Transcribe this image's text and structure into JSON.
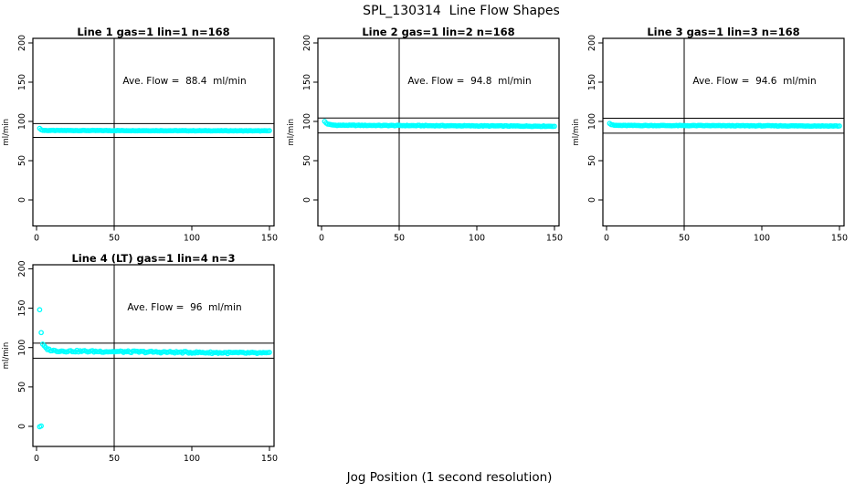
{
  "page": {
    "title": "SPL_130314  Line Flow Shapes",
    "xlabel": "Jog Position (1 second resolution)"
  },
  "chart_data": [
    {
      "type": "scatter",
      "title": "Line 1 gas=1 lin=1 n=168",
      "gas": 1,
      "lin": 1,
      "n": 168,
      "annotation": "Ave. Flow =  88.4  ml/min",
      "ave_flow": 88.4,
      "units": "ml/min",
      "ylabel": "ml/min",
      "xlim": [
        0,
        150
      ],
      "ylim": [
        0,
        200
      ],
      "x_ticks": [
        0,
        50,
        100,
        150
      ],
      "y_ticks": [
        0,
        50,
        100,
        150,
        200
      ],
      "ref_line_v": 50,
      "ref_lines_h": [
        97.2,
        79.6
      ],
      "point_color": "#00FFFF",
      "series": {
        "x_start": 2,
        "x_end": 150,
        "x_step": 1,
        "start_y": 91.4,
        "settle_y": 88.5,
        "end_y": 88.0,
        "decay_len": 0.8,
        "noise": 0.25
      },
      "outliers": []
    },
    {
      "type": "scatter",
      "title": "Line 2 gas=1 lin=2 n=168",
      "gas": 1,
      "lin": 2,
      "n": 168,
      "annotation": "Ave. Flow =  94.8  ml/min",
      "ave_flow": 94.8,
      "units": "ml/min",
      "ylabel": "ml/min",
      "xlim": [
        0,
        150
      ],
      "ylim": [
        0,
        200
      ],
      "x_ticks": [
        0,
        50,
        100,
        150
      ],
      "y_ticks": [
        0,
        50,
        100,
        150,
        200
      ],
      "ref_line_v": 50,
      "ref_lines_h": [
        104.3,
        85.3
      ],
      "point_color": "#00FFFF",
      "series": {
        "x_start": 2,
        "x_end": 150,
        "x_step": 1,
        "start_y": 100.0,
        "settle_y": 95.2,
        "end_y": 93.9,
        "decay_len": 1.8,
        "noise": 0.4
      },
      "outliers": []
    },
    {
      "type": "scatter",
      "title": "Line 3 gas=1 lin=3 n=168",
      "gas": 1,
      "lin": 3,
      "n": 168,
      "annotation": "Ave. Flow =  94.6  ml/min",
      "ave_flow": 94.6,
      "units": "ml/min",
      "ylabel": "ml/min",
      "xlim": [
        0,
        150
      ],
      "ylim": [
        0,
        200
      ],
      "x_ticks": [
        0,
        50,
        100,
        150
      ],
      "y_ticks": [
        0,
        50,
        100,
        150,
        200
      ],
      "ref_line_v": 50,
      "ref_lines_h": [
        104.1,
        85.1
      ],
      "point_color": "#00FFFF",
      "series": {
        "x_start": 2,
        "x_end": 150,
        "x_step": 1,
        "start_y": 97.5,
        "settle_y": 94.9,
        "end_y": 94.2,
        "decay_len": 1.2,
        "noise": 0.35
      },
      "outliers": []
    },
    {
      "type": "scatter",
      "title": "Line 4 (LT) gas=1 lin=4 n=3",
      "gas": 1,
      "lin": 4,
      "n": 3,
      "annotation": "Ave. Flow =  96  ml/min",
      "ave_flow": 96,
      "units": "ml/min",
      "ylabel": "ml/min",
      "xlim": [
        0,
        150
      ],
      "ylim": [
        0,
        200
      ],
      "x_ticks": [
        0,
        50,
        100,
        150
      ],
      "y_ticks": [
        0,
        50,
        100,
        150,
        200
      ],
      "ref_line_v": 50,
      "ref_lines_h": [
        105.6,
        86.4
      ],
      "point_color": "#00FFFF",
      "series": {
        "x_start": 4,
        "x_end": 150,
        "x_step": 1,
        "start_y": 104.0,
        "settle_y": 95.8,
        "end_y": 92.8,
        "decay_len": 2.5,
        "noise": 1.1
      },
      "outliers": [
        [
          2,
          148
        ],
        [
          3,
          119
        ],
        [
          2,
          -0.5
        ],
        [
          3,
          0.5
        ]
      ]
    }
  ]
}
